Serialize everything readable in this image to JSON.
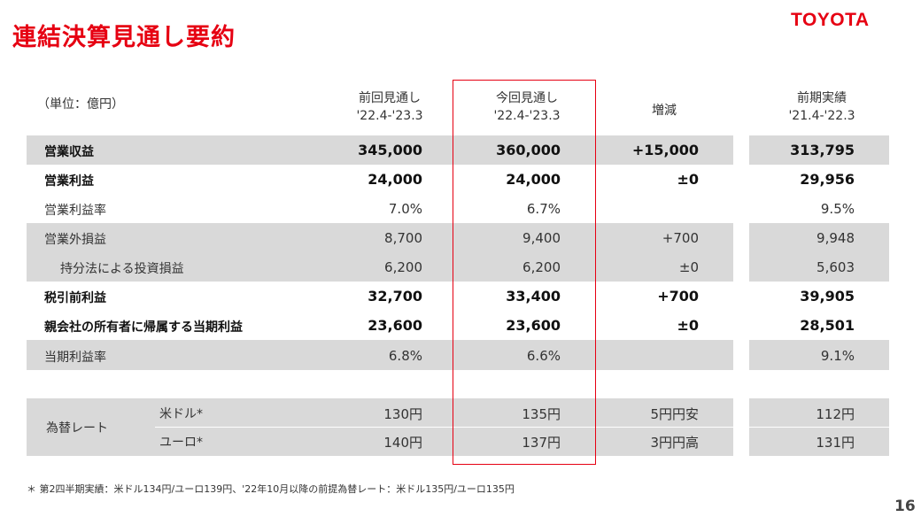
{
  "title": "連結決算見通し要約",
  "logo": "TOYOTA",
  "unit_label": "（単位：億円）",
  "headers": {
    "prev_forecast": [
      "前回見通し",
      "'22.4-'23.3"
    ],
    "curr_forecast": [
      "今回見通し",
      "'22.4-'23.3"
    ],
    "change": "増減",
    "last_year": [
      "前期実績",
      "'21.4-'22.3"
    ]
  },
  "rows": [
    {
      "label": "営業収益",
      "prev": "345,000",
      "curr": "360,000",
      "diff": "+15,000",
      "last": "313,795"
    },
    {
      "label": "営業利益",
      "prev": "24,000",
      "curr": "24,000",
      "diff": "±0",
      "last": "29,956"
    },
    {
      "label": "営業利益率",
      "prev": "7.0%",
      "curr": "6.7%",
      "diff": "",
      "last": "9.5%"
    },
    {
      "label": "営業外損益",
      "prev": "8,700",
      "curr": "9,400",
      "diff": "+700",
      "last": "9,948"
    },
    {
      "label": "持分法による投資損益",
      "prev": "6,200",
      "curr": "6,200",
      "diff": "±0",
      "last": "5,603"
    },
    {
      "label": "税引前利益",
      "prev": "32,700",
      "curr": "33,400",
      "diff": "+700",
      "last": "39,905"
    },
    {
      "label": "親会社の所有者に帰属する当期利益",
      "prev": "23,600",
      "curr": "23,600",
      "diff": "±0",
      "last": "28,501"
    },
    {
      "label": "当期利益率",
      "prev": "6.8%",
      "curr": "6.6%",
      "diff": "",
      "last": "9.1%"
    }
  ],
  "fx": {
    "label": "為替レート",
    "rows": [
      {
        "currency": "米ドル*",
        "prev": "130円",
        "curr": "135円",
        "diff": "5円円安",
        "last": "112円"
      },
      {
        "currency": "ユーロ*",
        "prev": "140円",
        "curr": "137円",
        "diff": "3円円高",
        "last": "131円"
      }
    ]
  },
  "footnote": "＊ 第2四半期実績：米ドル134円/ユーロ139円、'22年10月以降の前提為替レート：米ドル135円/ユーロ135円",
  "page_number": "16",
  "colors": {
    "accent": "#e60012",
    "shade": "#d9d9d9"
  }
}
